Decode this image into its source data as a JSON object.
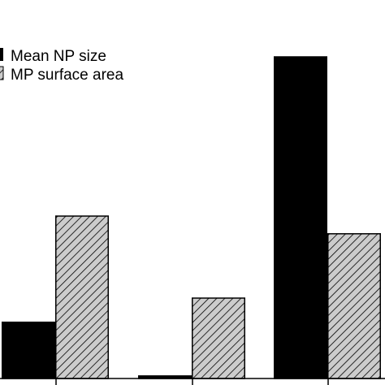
{
  "chart_data": {
    "type": "bar",
    "title": "",
    "xlabel": "",
    "ylabel": "",
    "categories": [
      "",
      "",
      ""
    ],
    "ylim": [
      0,
      100
    ],
    "grid": false,
    "legend_position": "top-left",
    "series": [
      {
        "name": "Mean NP size",
        "values": [
          17.5,
          0.8,
          100
        ],
        "fill": "#000000",
        "pattern": "solid"
      },
      {
        "name": "MP surface area",
        "values": [
          50.5,
          25,
          45
        ],
        "fill": "#cccccc",
        "pattern": "hatched"
      }
    ]
  }
}
